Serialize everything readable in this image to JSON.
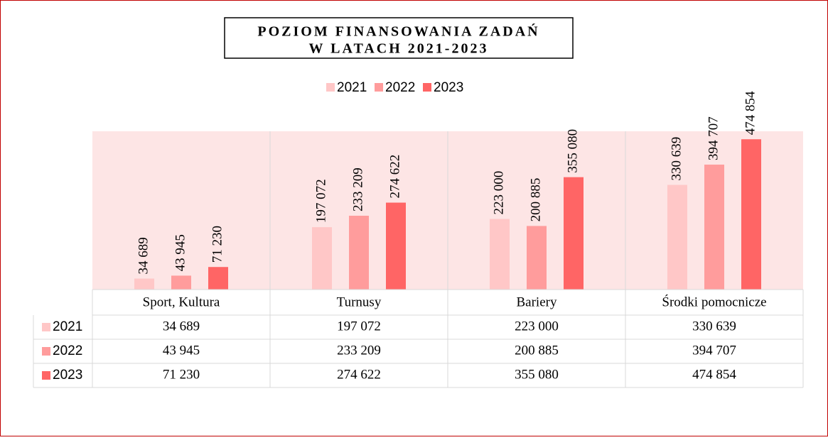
{
  "chart_data": {
    "type": "bar",
    "title": "POZIOM FINANSOWANIA ZADAŃ",
    "subtitle": "W LATACH 2021-2023",
    "categories": [
      "Sport, Kultura",
      "Turnusy",
      "Bariery",
      "Środki pomocnicze"
    ],
    "series": [
      {
        "name": "2021",
        "color": "#ffc7c7",
        "values": [
          34689,
          197072,
          223000,
          330639
        ],
        "value_labels": [
          "34 689",
          "197 072",
          "223 000",
          "330 639"
        ]
      },
      {
        "name": "2022",
        "color": "#ff9c9c",
        "values": [
          43945,
          233209,
          200885,
          394707
        ],
        "value_labels": [
          "43 945",
          "233 209",
          "200 885",
          "394 707"
        ]
      },
      {
        "name": "2023",
        "color": "#ff6565",
        "values": [
          71230,
          274622,
          355080,
          474854
        ],
        "value_labels": [
          "71 230",
          "274 622",
          "355 080",
          "474 854"
        ]
      }
    ],
    "ylim": [
      0,
      500000
    ],
    "legend": "top"
  }
}
